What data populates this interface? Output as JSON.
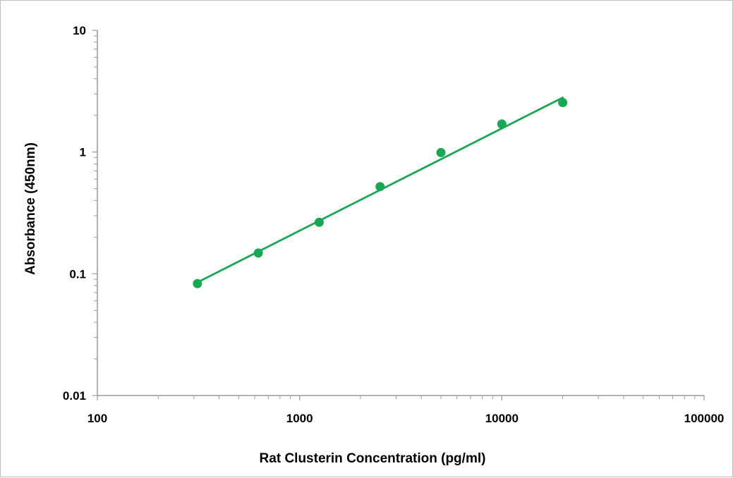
{
  "chart_data": {
    "type": "scatter",
    "title": "",
    "xlabel": "Rat Clusterin Concentration (pg/ml)",
    "ylabel": "Absorbance (450nm)",
    "x_scale": "log",
    "y_scale": "log",
    "xlim": [
      100,
      100000
    ],
    "ylim": [
      0.01,
      10
    ],
    "x_ticks": [
      "100",
      "1000",
      "10000",
      "100000"
    ],
    "y_ticks": [
      "0.01",
      "0.1",
      "1",
      "10"
    ],
    "grid": false,
    "legend": "none",
    "series": [
      {
        "x": [
          312.5,
          625,
          1250,
          2500,
          5000,
          10000,
          20000
        ],
        "y": [
          0.083,
          0.148,
          0.265,
          0.52,
          0.99,
          1.7,
          2.55
        ],
        "color": "#1aa655"
      }
    ],
    "trendline": {
      "type": "power",
      "x_range": [
        312.5,
        20000
      ],
      "y_range": [
        0.085,
        2.8
      ],
      "color": "#1aa655"
    },
    "axis_color": "#999999"
  }
}
